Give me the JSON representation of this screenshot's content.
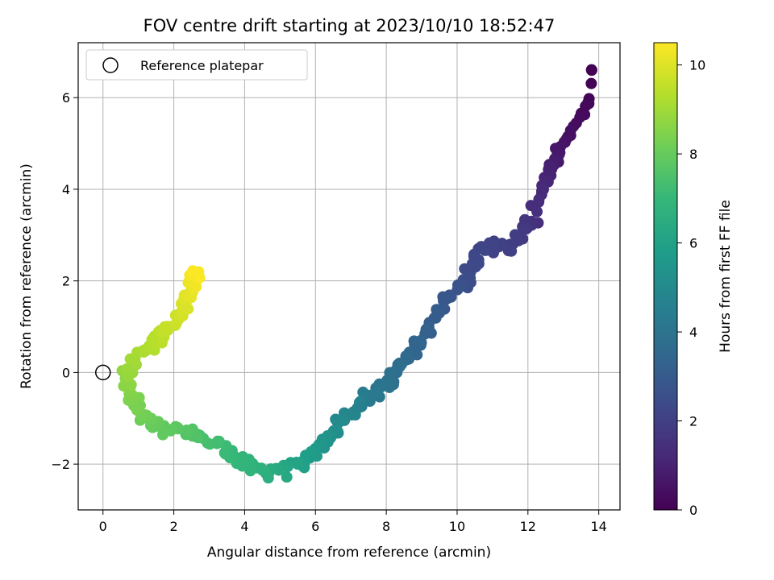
{
  "chart_data": {
    "type": "scatter",
    "title": "FOV centre drift starting at 2023/10/10 18:52:47",
    "xlabel": "Angular distance from reference (arcmin)",
    "ylabel": "Rotation from reference (arcmin)",
    "xlim": [
      -0.7,
      14.6
    ],
    "ylim": [
      -3.0,
      7.2
    ],
    "xticks": [
      0,
      2,
      4,
      6,
      8,
      10,
      12,
      14
    ],
    "yticks": [
      -2,
      0,
      2,
      4,
      6
    ],
    "grid": true,
    "legend": {
      "placement": "upper-left",
      "entries": [
        "Reference platepar"
      ]
    },
    "reference_point": {
      "x": 0,
      "y": 0,
      "label": "Reference platepar"
    },
    "colorbar": {
      "label": "Hours from first FF file",
      "colormap": "viridis",
      "range": [
        0,
        10.5
      ],
      "ticks": [
        0,
        2,
        4,
        6,
        8,
        10
      ]
    },
    "anchor_points": [
      {
        "x": 13.8,
        "y": 6.6,
        "hours": 0.0
      },
      {
        "x": 13.7,
        "y": 5.9,
        "hours": 0.15
      },
      {
        "x": 12.9,
        "y": 4.8,
        "hours": 0.6
      },
      {
        "x": 12.6,
        "y": 4.4,
        "hours": 1.0
      },
      {
        "x": 12.1,
        "y": 3.3,
        "hours": 1.5
      },
      {
        "x": 11.5,
        "y": 2.8,
        "hours": 2.0
      },
      {
        "x": 10.6,
        "y": 2.7,
        "hours": 2.2
      },
      {
        "x": 10.3,
        "y": 2.0,
        "hours": 2.5
      },
      {
        "x": 9.5,
        "y": 1.3,
        "hours": 3.0
      },
      {
        "x": 8.8,
        "y": 0.6,
        "hours": 3.4
      },
      {
        "x": 8.3,
        "y": 0.0,
        "hours": 3.8
      },
      {
        "x": 7.5,
        "y": -0.5,
        "hours": 4.3
      },
      {
        "x": 6.8,
        "y": -1.0,
        "hours": 4.9
      },
      {
        "x": 6.2,
        "y": -1.6,
        "hours": 5.5
      },
      {
        "x": 5.5,
        "y": -2.0,
        "hours": 6.0
      },
      {
        "x": 4.6,
        "y": -2.2,
        "hours": 6.6
      },
      {
        "x": 3.5,
        "y": -1.7,
        "hours": 7.1
      },
      {
        "x": 2.5,
        "y": -1.3,
        "hours": 7.6
      },
      {
        "x": 1.4,
        "y": -1.2,
        "hours": 8.0
      },
      {
        "x": 0.9,
        "y": -0.6,
        "hours": 8.4
      },
      {
        "x": 0.6,
        "y": 0.0,
        "hours": 8.8
      },
      {
        "x": 1.2,
        "y": 0.5,
        "hours": 9.2
      },
      {
        "x": 1.9,
        "y": 1.0,
        "hours": 9.6
      },
      {
        "x": 2.4,
        "y": 1.6,
        "hours": 10.0
      },
      {
        "x": 2.7,
        "y": 2.2,
        "hours": 10.5
      }
    ],
    "points_per_segment": 14,
    "jitter": {
      "x": 0.22,
      "y": 0.22
    },
    "colors": {
      "grid": "#b0b0b0",
      "axes": "#000000",
      "reference_marker": "#000000",
      "viridis_stops": [
        "#440154",
        "#482878",
        "#3e4989",
        "#31688e",
        "#26828e",
        "#1f9e89",
        "#35b779",
        "#6ece58",
        "#b5de2b",
        "#fde725"
      ]
    }
  }
}
